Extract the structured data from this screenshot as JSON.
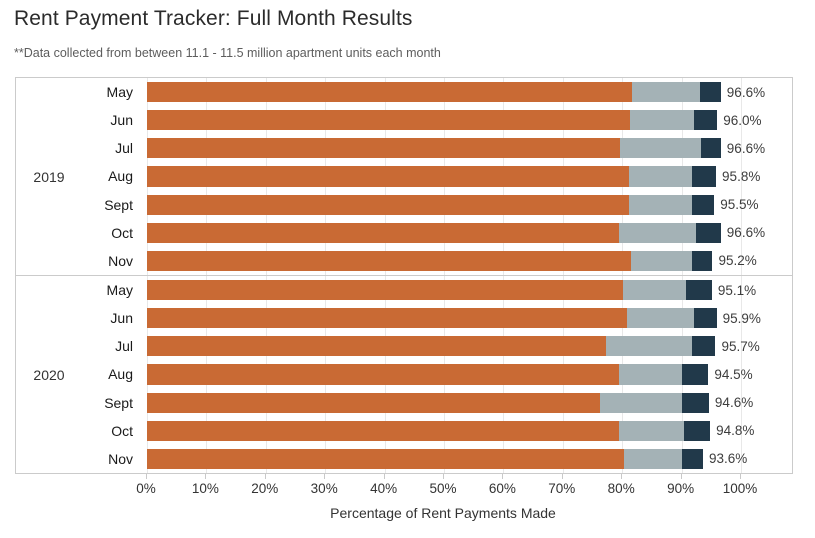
{
  "header": {
    "title": "Rent Payment Tracker: Full Month Results",
    "subtitle": "**Data collected from between 11.1 - 11.5 million apartment units each month"
  },
  "chart_data": {
    "type": "bar",
    "orientation": "horizontal",
    "stacked": true,
    "title": "Rent Payment Tracker: Full Month Results",
    "xlabel": "Percentage of Rent Payments Made",
    "ylabel": "",
    "xlim": [
      0,
      100
    ],
    "x_tick_labels": [
      "0%",
      "10%",
      "20%",
      "30%",
      "40%",
      "50%",
      "60%",
      "70%",
      "80%",
      "90%",
      "100%"
    ],
    "grid": true,
    "legend": "none",
    "colors": {
      "segment1": "#c96a34",
      "segment2": "#a4b2b6",
      "segment3": "#21394a",
      "gridline": "#e8e8e8",
      "border": "#cbcbcb"
    },
    "groups": [
      {
        "year": "2019",
        "rows": [
          {
            "month": "May",
            "cumulative_pct": [
              81.6,
              93.1,
              96.6
            ],
            "total_label": "96.6%"
          },
          {
            "month": "Jun",
            "cumulative_pct": [
              81.3,
              92.1,
              96.0
            ],
            "total_label": "96.0%"
          },
          {
            "month": "Jul",
            "cumulative_pct": [
              79.6,
              93.3,
              96.6
            ],
            "total_label": "96.6%"
          },
          {
            "month": "Aug",
            "cumulative_pct": [
              81.1,
              91.7,
              95.8
            ],
            "total_label": "95.8%"
          },
          {
            "month": "Sept",
            "cumulative_pct": [
              81.1,
              91.7,
              95.5
            ],
            "total_label": "95.5%"
          },
          {
            "month": "Oct",
            "cumulative_pct": [
              79.4,
              92.4,
              96.6
            ],
            "total_label": "96.6%"
          },
          {
            "month": "Nov",
            "cumulative_pct": [
              81.5,
              91.7,
              95.2
            ],
            "total_label": "95.2%"
          }
        ]
      },
      {
        "year": "2020",
        "rows": [
          {
            "month": "May",
            "cumulative_pct": [
              80.1,
              90.7,
              95.1
            ],
            "total_label": "95.1%"
          },
          {
            "month": "Jun",
            "cumulative_pct": [
              80.8,
              92.1,
              95.9
            ],
            "total_label": "95.9%"
          },
          {
            "month": "Jul",
            "cumulative_pct": [
              77.2,
              91.7,
              95.7
            ],
            "total_label": "95.7%"
          },
          {
            "month": "Aug",
            "cumulative_pct": [
              79.4,
              90.0,
              94.5
            ],
            "total_label": "94.5%"
          },
          {
            "month": "Sept",
            "cumulative_pct": [
              76.3,
              90.0,
              94.6
            ],
            "total_label": "94.6%"
          },
          {
            "month": "Oct",
            "cumulative_pct": [
              79.4,
              90.4,
              94.8
            ],
            "total_label": "94.8%"
          },
          {
            "month": "Nov",
            "cumulative_pct": [
              80.3,
              90.0,
              93.6
            ],
            "total_label": "93.6%"
          }
        ]
      }
    ]
  }
}
